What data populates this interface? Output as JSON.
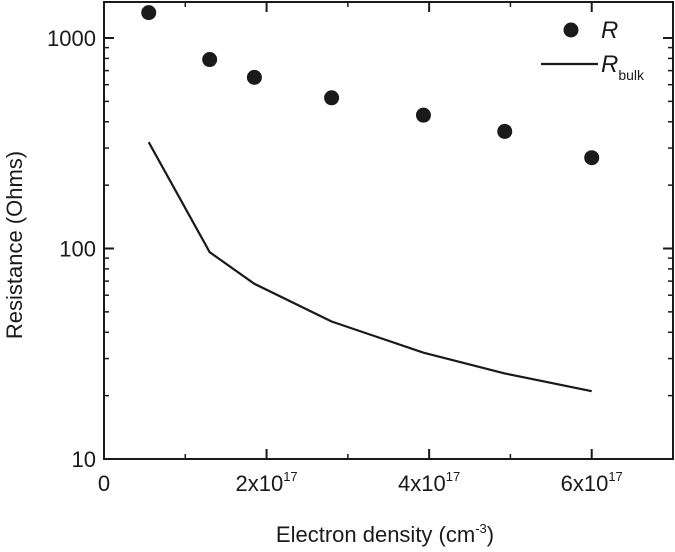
{
  "chart_data": {
    "type": "scatter",
    "xlabel": "Electron density (cm-3)",
    "ylabel": "Resistance (Ohms)",
    "x_scale": "linear",
    "y_scale": "log",
    "xlim": [
      0,
      7e+17
    ],
    "ylim": [
      10,
      1500
    ],
    "x_ticks": [
      {
        "value": 0,
        "base": "0",
        "exp": ""
      },
      {
        "value": 2e+17,
        "base": "2x10",
        "exp": "17"
      },
      {
        "value": 4e+17,
        "base": "4x10",
        "exp": "17"
      },
      {
        "value": 6e+17,
        "base": "6x10",
        "exp": "17"
      }
    ],
    "y_ticks": [
      {
        "value": 10,
        "label": "10"
      },
      {
        "value": 100,
        "label": "100"
      },
      {
        "value": 1000,
        "label": "1000"
      }
    ],
    "series": [
      {
        "name": "R",
        "kind": "scatter",
        "color": "#1a1a1a",
        "x": [
          5.5e+16,
          1.3e+17,
          1.85e+17,
          2.8e+17,
          3.93e+17,
          4.93e+17,
          6e+17
        ],
        "y": [
          1320,
          790,
          650,
          520,
          430,
          360,
          270
        ]
      },
      {
        "name": "Rbulk",
        "kind": "line",
        "color": "#1a1a1a",
        "x": [
          5.5e+16,
          1.3e+17,
          1.85e+17,
          2.8e+17,
          3.93e+17,
          4.93e+17,
          6e+17
        ],
        "y": [
          320,
          96,
          68,
          45,
          32,
          25.5,
          21
        ]
      }
    ],
    "legend": {
      "position": "top-right",
      "items": [
        {
          "main": "R",
          "sub": ""
        },
        {
          "main": "R",
          "sub": "bulk"
        }
      ]
    },
    "grid": false
  }
}
